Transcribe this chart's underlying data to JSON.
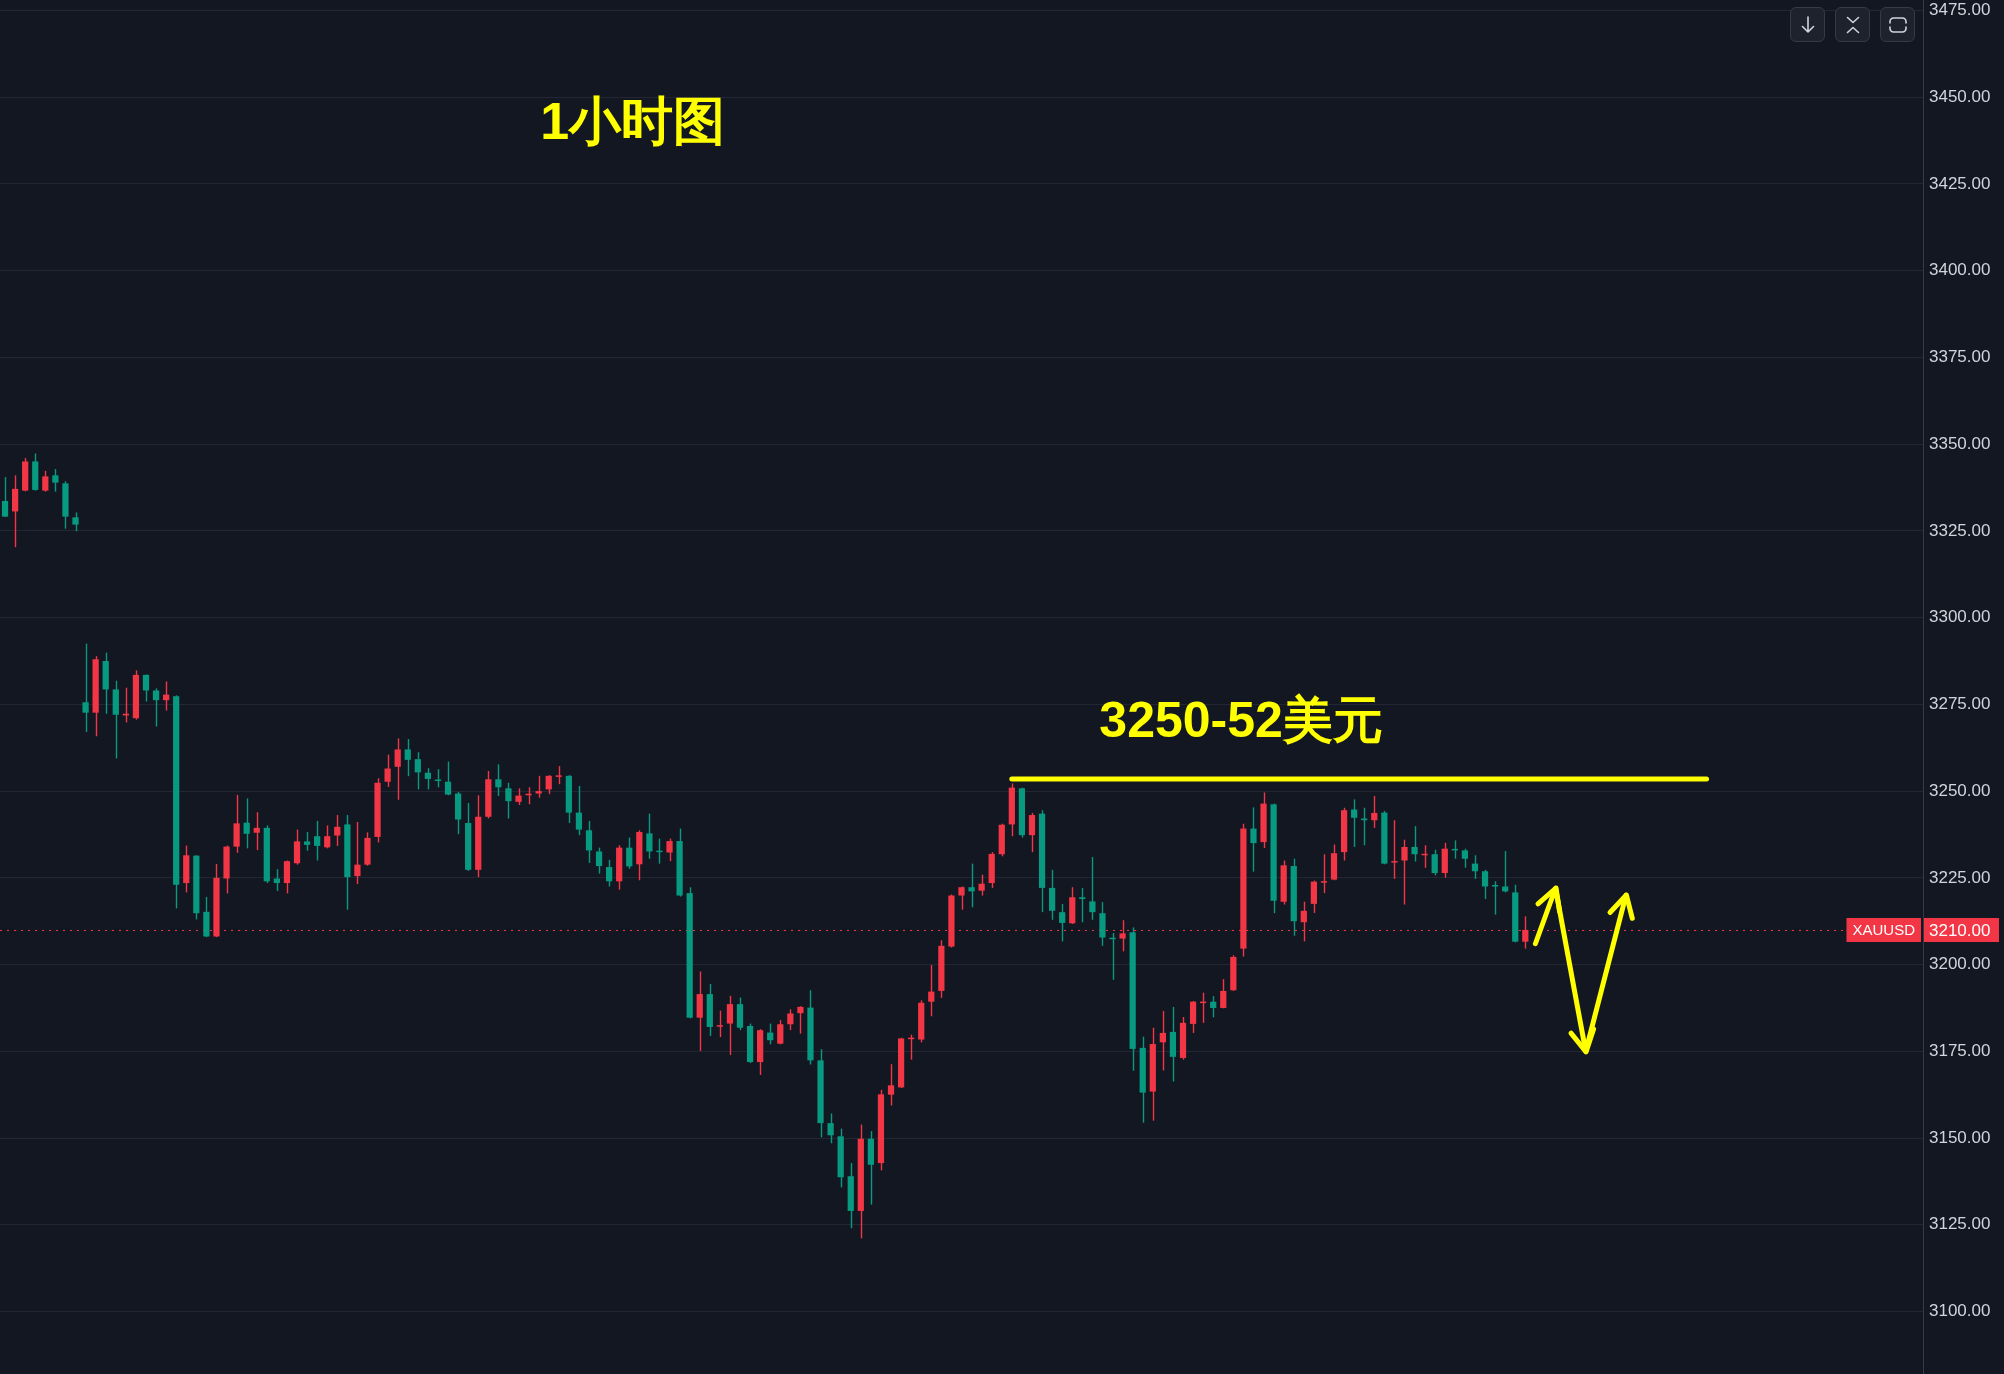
{
  "chart_data": {
    "type": "candlestick",
    "title": "1小时图",
    "categories": [
      null,
      null,
      null,
      null,
      null,
      null,
      null,
      null,
      null,
      null,
      null,
      null,
      null,
      null,
      null,
      null,
      null,
      null,
      null,
      null,
      null,
      null,
      null,
      null,
      null,
      null,
      null,
      null,
      null,
      null,
      null,
      null,
      null,
      null,
      null,
      null,
      null,
      null,
      null,
      null,
      null,
      null,
      null,
      null,
      null,
      null,
      null,
      null,
      null,
      null,
      null,
      null,
      null,
      null,
      null,
      null,
      null,
      null,
      null,
      null,
      null,
      null,
      null,
      null,
      null,
      null,
      null,
      null,
      null,
      null,
      null,
      null,
      null,
      null,
      null,
      null,
      null,
      null,
      null,
      null,
      null,
      null,
      null,
      null,
      null,
      null,
      null,
      null,
      null,
      null,
      null,
      null,
      null,
      null,
      null,
      null,
      null,
      null,
      null,
      null,
      null,
      null,
      null,
      null,
      null,
      null,
      null,
      null,
      null,
      null,
      null,
      null,
      null,
      null,
      null,
      null,
      null,
      null,
      null,
      null,
      null,
      null,
      null,
      null,
      null,
      null,
      null,
      null,
      null,
      null,
      null,
      null,
      null,
      null,
      null,
      null,
      null,
      null,
      null,
      null,
      null,
      null,
      null,
      null,
      null,
      null,
      null,
      null,
      null,
      null,
      null,
      null,
      null,
      null,
      null,
      null,
      null,
      null,
      null,
      null,
      null,
      null,
      null,
      null,
      null,
      null,
      null,
      null,
      null,
      null,
      null,
      null,
      null,
      null,
      null,
      null,
      null,
      null,
      null,
      null,
      null,
      null,
      null,
      null,
      null,
      null,
      null,
      null,
      null,
      null,
      null
    ],
    "ohlc": [
      [
        3333.6,
        3340.5,
        3329.0,
        3329.1
      ],
      [
        3330.6,
        3341.0,
        3320.3,
        3337.1
      ],
      [
        3336.6,
        3346.0,
        3336.4,
        3345.0
      ],
      [
        3345.0,
        3347.3,
        3336.6,
        3336.8
      ],
      [
        3336.6,
        3342.3,
        3336.3,
        3340.7
      ],
      [
        3341.0,
        3342.8,
        3336.3,
        3338.9
      ],
      [
        3338.7,
        3339.3,
        3325.6,
        3329.1
      ],
      [
        3328.9,
        3330.3,
        3324.9,
        3326.8
      ],
      [
        3275.6,
        3292.5,
        3267.0,
        3272.6
      ],
      [
        3272.6,
        3288.9,
        3265.8,
        3288.0
      ],
      [
        3287.5,
        3289.9,
        3272.3,
        3279.3
      ],
      [
        3279.3,
        3281.8,
        3259.4,
        3272.0
      ],
      [
        3271.8,
        3279.8,
        3269.8,
        3272.3
      ],
      [
        3271.0,
        3284.8,
        3270.6,
        3283.5
      ],
      [
        3283.5,
        3283.6,
        3275.8,
        3279.0
      ],
      [
        3279.0,
        3279.6,
        3268.6,
        3276.2
      ],
      [
        3276.2,
        3281.6,
        3273.2,
        3277.8
      ],
      [
        3277.3,
        3277.6,
        3216.2,
        3223.0
      ],
      [
        3223.5,
        3234.3,
        3220.8,
        3231.5
      ],
      [
        3231.4,
        3231.5,
        3213.0,
        3214.8
      ],
      [
        3215.2,
        3219.5,
        3207.9,
        3208.1
      ],
      [
        3208.1,
        3229.0,
        3207.9,
        3225.0
      ],
      [
        3224.8,
        3234.3,
        3220.5,
        3234.0
      ],
      [
        3234.0,
        3248.9,
        3232.2,
        3240.7
      ],
      [
        3240.9,
        3247.9,
        3233.5,
        3237.7
      ],
      [
        3238.0,
        3243.9,
        3233.0,
        3239.4
      ],
      [
        3239.4,
        3240.1,
        3223.5,
        3224.0
      ],
      [
        3224.8,
        3227.5,
        3221.2,
        3223.5
      ],
      [
        3223.5,
        3230.0,
        3220.5,
        3229.8
      ],
      [
        3229.2,
        3238.9,
        3228.8,
        3235.5
      ],
      [
        3235.5,
        3238.2,
        3232.8,
        3234.5
      ],
      [
        3237.0,
        3241.4,
        3230.0,
        3234.2
      ],
      [
        3233.8,
        3240.1,
        3233.5,
        3237.0
      ],
      [
        3237.2,
        3243.1,
        3234.2,
        3239.7
      ],
      [
        3240.4,
        3243.1,
        3215.8,
        3225.2
      ],
      [
        3225.5,
        3241.1,
        3223.2,
        3228.8
      ],
      [
        3228.8,
        3238.1,
        3228.5,
        3236.5
      ],
      [
        3236.8,
        3253.7,
        3235.2,
        3252.4
      ],
      [
        3252.7,
        3260.5,
        3251.2,
        3256.5
      ],
      [
        3257.0,
        3265.2,
        3247.5,
        3262.0
      ],
      [
        3262.0,
        3265.0,
        3254.3,
        3259.0
      ],
      [
        3259.2,
        3261.2,
        3250.5,
        3255.4
      ],
      [
        3255.3,
        3256.6,
        3250.5,
        3253.5
      ],
      [
        3253.2,
        3256.3,
        3251.1,
        3252.9
      ],
      [
        3252.7,
        3258.5,
        3248.8,
        3249.0
      ],
      [
        3249.3,
        3249.8,
        3237.6,
        3241.8
      ],
      [
        3240.8,
        3246.6,
        3227.0,
        3227.3
      ],
      [
        3227.3,
        3248.8,
        3225.2,
        3242.6
      ],
      [
        3242.6,
        3255.8,
        3242.1,
        3253.4
      ],
      [
        3253.4,
        3257.7,
        3248.6,
        3251.1
      ],
      [
        3250.8,
        3252.4,
        3242.1,
        3247.1
      ],
      [
        3246.9,
        3250.8,
        3246.0,
        3248.7
      ],
      [
        3248.8,
        3251.1,
        3246.2,
        3249.1
      ],
      [
        3249.3,
        3254.4,
        3248.1,
        3250.0
      ],
      [
        3250.5,
        3254.6,
        3249.1,
        3254.4
      ],
      [
        3254.1,
        3257.2,
        3252.0,
        3254.3
      ],
      [
        3254.4,
        3254.6,
        3240.8,
        3243.8
      ],
      [
        3243.8,
        3251.5,
        3237.3,
        3238.9
      ],
      [
        3238.7,
        3241.4,
        3229.3,
        3232.9
      ],
      [
        3232.6,
        3233.7,
        3226.2,
        3228.4
      ],
      [
        3228.1,
        3230.2,
        3222.5,
        3224.0
      ],
      [
        3224.0,
        3234.4,
        3221.6,
        3233.7
      ],
      [
        3233.7,
        3236.6,
        3227.6,
        3228.3
      ],
      [
        3228.9,
        3238.7,
        3224.3,
        3238.2
      ],
      [
        3237.8,
        3243.5,
        3230.5,
        3232.6
      ],
      [
        3232.6,
        3236.3,
        3229.1,
        3232.4
      ],
      [
        3232.3,
        3236.3,
        3229.8,
        3235.6
      ],
      [
        3235.6,
        3239.2,
        3219.6,
        3219.9
      ],
      [
        3220.6,
        3222.3,
        3184.5,
        3184.7
      ],
      [
        3184.7,
        3198.0,
        3175.1,
        3191.5
      ],
      [
        3191.5,
        3194.4,
        3179.4,
        3182.0
      ],
      [
        3182.1,
        3186.7,
        3179.1,
        3182.5
      ],
      [
        3183.0,
        3191.0,
        3173.9,
        3188.6
      ],
      [
        3188.6,
        3190.5,
        3181.1,
        3181.8
      ],
      [
        3182.3,
        3183.0,
        3171.6,
        3171.9
      ],
      [
        3171.9,
        3181.4,
        3168.2,
        3181.1
      ],
      [
        3180.4,
        3183.0,
        3177.0,
        3178.2
      ],
      [
        3177.2,
        3184.0,
        3177.0,
        3182.8
      ],
      [
        3182.8,
        3187.1,
        3181.1,
        3185.9
      ],
      [
        3186.0,
        3188.0,
        3180.1,
        3187.8
      ],
      [
        3187.6,
        3192.6,
        3171.2,
        3172.4
      ],
      [
        3172.4,
        3175.6,
        3150.2,
        3154.3
      ],
      [
        3154.3,
        3157.1,
        3148.5,
        3150.8
      ],
      [
        3150.5,
        3152.7,
        3135.8,
        3138.7
      ],
      [
        3139.0,
        3142.8,
        3124.0,
        3129.0
      ],
      [
        3129.0,
        3153.9,
        3121.1,
        3149.8
      ],
      [
        3149.8,
        3152.0,
        3130.8,
        3142.3
      ],
      [
        3142.8,
        3163.9,
        3140.7,
        3162.6
      ],
      [
        3162.5,
        3171.3,
        3159.4,
        3165.2
      ],
      [
        3164.6,
        3178.9,
        3164.4,
        3178.7
      ],
      [
        3178.5,
        3179.8,
        3172.6,
        3178.9
      ],
      [
        3178.4,
        3189.7,
        3177.6,
        3189.0
      ],
      [
        3189.3,
        3199.9,
        3185.1,
        3192.2
      ],
      [
        3192.4,
        3207.0,
        3190.4,
        3205.4
      ],
      [
        3205.2,
        3220.2,
        3204.9,
        3219.9
      ],
      [
        3219.9,
        3222.5,
        3215.8,
        3222.3
      ],
      [
        3222.3,
        3229.1,
        3216.5,
        3221.1
      ],
      [
        3221.3,
        3225.9,
        3219.9,
        3223.3
      ],
      [
        3223.5,
        3232.4,
        3222.1,
        3231.9
      ],
      [
        3231.8,
        3240.6,
        3231.2,
        3240.3
      ],
      [
        3240.4,
        3252.2,
        3237.0,
        3251.0
      ],
      [
        3250.8,
        3251.0,
        3236.6,
        3237.3
      ],
      [
        3237.3,
        3243.7,
        3232.4,
        3243.1
      ],
      [
        3243.5,
        3244.5,
        3215.1,
        3222.1
      ],
      [
        3222.1,
        3227.3,
        3212.9,
        3215.5
      ],
      [
        3215.1,
        3217.5,
        3206.7,
        3212.0
      ],
      [
        3211.9,
        3222.3,
        3211.7,
        3219.4
      ],
      [
        3219.4,
        3222.1,
        3212.2,
        3218.9
      ],
      [
        3218.2,
        3231.0,
        3212.9,
        3215.1
      ],
      [
        3214.8,
        3218.0,
        3205.4,
        3207.8
      ],
      [
        3207.6,
        3209.1,
        3195.6,
        3207.3
      ],
      [
        3207.5,
        3212.8,
        3203.8,
        3209.0
      ],
      [
        3209.3,
        3210.7,
        3169.4,
        3175.7
      ],
      [
        3176.0,
        3179.2,
        3154.4,
        3163.1
      ],
      [
        3163.4,
        3181.8,
        3155.0,
        3177.1
      ],
      [
        3177.6,
        3186.6,
        3169.5,
        3180.3
      ],
      [
        3180.6,
        3187.8,
        3166.3,
        3173.4
      ],
      [
        3173.1,
        3184.9,
        3172.6,
        3183.2
      ],
      [
        3182.9,
        3189.5,
        3180.3,
        3189.3
      ],
      [
        3188.9,
        3191.9,
        3183.2,
        3189.3
      ],
      [
        3189.3,
        3190.9,
        3184.8,
        3187.5
      ],
      [
        3187.5,
        3195.8,
        3187.4,
        3192.4
      ],
      [
        3192.6,
        3202.7,
        3192.4,
        3202.2
      ],
      [
        3204.6,
        3240.6,
        3202.3,
        3239.2
      ],
      [
        3239.2,
        3245.3,
        3226.8,
        3235.0
      ],
      [
        3235.3,
        3249.6,
        3233.6,
        3246.4
      ],
      [
        3246.2,
        3246.4,
        3214.8,
        3218.4
      ],
      [
        3218.1,
        3230.0,
        3217.3,
        3228.6
      ],
      [
        3228.4,
        3230.5,
        3208.3,
        3212.5
      ],
      [
        3212.2,
        3218.1,
        3206.7,
        3215.5
      ],
      [
        3217.5,
        3224.2,
        3214.9,
        3223.9
      ],
      [
        3223.6,
        3231.8,
        3220.6,
        3224.0
      ],
      [
        3224.5,
        3234.6,
        3224.3,
        3232.1
      ],
      [
        3232.4,
        3245.2,
        3230.0,
        3244.5
      ],
      [
        3244.7,
        3247.6,
        3233.9,
        3242.3
      ],
      [
        3242.1,
        3245.2,
        3234.4,
        3241.6
      ],
      [
        3241.6,
        3248.6,
        3239.4,
        3243.7
      ],
      [
        3243.8,
        3244.3,
        3228.9,
        3229.1
      ],
      [
        3229.4,
        3241.6,
        3224.7,
        3229.8
      ],
      [
        3230.0,
        3236.0,
        3217.3,
        3233.9
      ],
      [
        3233.9,
        3239.9,
        3229.7,
        3231.8
      ],
      [
        3231.5,
        3234.4,
        3227.9,
        3231.8
      ],
      [
        3231.8,
        3233.1,
        3225.7,
        3226.4
      ],
      [
        3226.4,
        3235.1,
        3225.0,
        3233.4
      ],
      [
        3233.2,
        3235.8,
        3230.5,
        3232.9
      ],
      [
        3232.9,
        3233.4,
        3227.9,
        3230.5
      ],
      [
        3229.1,
        3231.5,
        3224.7,
        3226.9
      ],
      [
        3226.9,
        3227.3,
        3218.9,
        3222.5
      ],
      [
        3222.8,
        3224.0,
        3214.4,
        3222.5
      ],
      [
        3222.5,
        3232.7,
        3220.8,
        3221.1
      ],
      [
        3220.8,
        3223.0,
        3206.4,
        3206.6
      ],
      [
        3206.6,
        3213.9,
        3204.6,
        3210.0
      ],
      null,
      null,
      null,
      null,
      null,
      null,
      null,
      null,
      null,
      null,
      null,
      null,
      null,
      null,
      null,
      null,
      null,
      null,
      null,
      null,
      null,
      null,
      null,
      null,
      null,
      null,
      null,
      null,
      null,
      null,
      null,
      null,
      null,
      null,
      null,
      null,
      null,
      null,
      null
    ],
    "colors": [
      "#089981",
      "#f23645",
      "#f23645",
      "#089981",
      "#f23645",
      "#089981",
      "#089981",
      "#089981",
      "#089981",
      "#f23645",
      "#089981",
      "#089981",
      "#f23645",
      "#f23645",
      "#089981",
      "#089981",
      "#f23645",
      "#089981",
      "#f23645",
      "#089981",
      "#089981",
      "#f23645",
      "#f23645",
      "#f23645",
      "#089981",
      "#f23645",
      "#089981",
      "#089981",
      "#f23645",
      "#f23645",
      "#089981",
      "#089981",
      "#f23645",
      "#f23645",
      "#089981",
      "#f23645",
      "#f23645",
      "#f23645",
      "#f23645",
      "#f23645",
      "#089981",
      "#089981",
      "#089981",
      "#089981",
      "#089981",
      "#089981",
      "#089981",
      "#f23645",
      "#f23645",
      "#089981",
      "#089981",
      "#f23645",
      "#f23645",
      "#f23645",
      "#f23645",
      "#f23645",
      "#089981",
      "#089981",
      "#089981",
      "#089981",
      "#089981",
      "#f23645",
      "#089981",
      "#f23645",
      "#089981",
      "#089981",
      "#f23645",
      "#089981",
      "#089981",
      "#f23645",
      "#089981",
      "#f23645",
      "#f23645",
      "#089981",
      "#089981",
      "#f23645",
      "#089981",
      "#f23645",
      "#f23645",
      "#f23645",
      "#089981",
      "#089981",
      "#089981",
      "#089981",
      "#089981",
      "#f23645",
      "#089981",
      "#f23645",
      "#f23645",
      "#f23645",
      "#f23645",
      "#f23645",
      "#f23645",
      "#f23645",
      "#f23645",
      "#f23645",
      "#089981",
      "#f23645",
      "#f23645",
      "#f23645",
      "#f23645",
      "#089981",
      "#f23645",
      "#089981",
      "#089981",
      "#089981",
      "#f23645",
      "#089981",
      "#089981",
      "#089981",
      "#089981",
      "#f23645",
      "#089981",
      "#089981",
      "#f23645",
      "#f23645",
      "#089981",
      "#f23645",
      "#f23645",
      "#f23645",
      "#089981",
      "#f23645",
      "#f23645",
      "#f23645",
      "#089981",
      "#f23645",
      "#089981",
      "#f23645",
      "#089981",
      "#f23645",
      "#f23645",
      "#f23645",
      "#f23645",
      "#f23645",
      "#089981",
      "#089981",
      "#f23645",
      "#089981",
      "#f23645",
      "#f23645",
      "#089981",
      "#f23645",
      "#089981",
      "#f23645",
      "#089981",
      "#089981",
      "#089981",
      "#089981",
      "#089981",
      "#089981",
      "#089981",
      "#f23645",
      null,
      null,
      null,
      null,
      null,
      null,
      null,
      null,
      null,
      null,
      null,
      null,
      null,
      null,
      null,
      null,
      null,
      null,
      null,
      null,
      null,
      null,
      null,
      null,
      null,
      null,
      null,
      null,
      null,
      null,
      null,
      null,
      null,
      null,
      null,
      null,
      null,
      null,
      null
    ],
    "series": [
      {
        "type": "line",
        "name": "3250-52美元",
        "color": "#ffff00",
        "values": [
          null,
          null,
          null,
          null,
          null,
          null,
          null,
          null,
          null,
          null,
          null,
          null,
          null,
          null,
          null,
          null,
          null,
          null,
          null,
          null,
          null,
          null,
          null,
          null,
          null,
          null,
          null,
          null,
          null,
          null,
          null,
          null,
          null,
          null,
          null,
          null,
          null,
          null,
          null,
          null,
          null,
          null,
          null,
          null,
          null,
          null,
          null,
          null,
          null,
          null,
          null,
          null,
          null,
          null,
          null,
          null,
          null,
          null,
          null,
          null,
          null,
          null,
          null,
          null,
          null,
          null,
          null,
          null,
          null,
          null,
          null,
          null,
          null,
          null,
          null,
          null,
          null,
          null,
          null,
          null,
          null,
          null,
          null,
          null,
          null,
          null,
          null,
          null,
          null,
          null,
          null,
          null,
          null,
          null,
          null,
          null,
          null,
          null,
          null,
          null,
          3253.5,
          null,
          null,
          null,
          null,
          null,
          null,
          null,
          null,
          null,
          null,
          null,
          null,
          null,
          null,
          null,
          null,
          null,
          null,
          null,
          null,
          null,
          null,
          null,
          null,
          null,
          null,
          null,
          null,
          null,
          null,
          null,
          null,
          null,
          null,
          null,
          null,
          null,
          null,
          null,
          null,
          null,
          null,
          null,
          null,
          null,
          null,
          null,
          null,
          null,
          null,
          null,
          null,
          null,
          null,
          null,
          null,
          null,
          null,
          null,
          null,
          null,
          null,
          null,
          null,
          null,
          null,
          null,
          null,
          3253.5,
          null,
          null,
          null,
          null,
          null,
          null,
          null,
          null,
          null,
          null,
          null,
          null,
          null,
          null,
          null,
          null,
          null,
          null,
          null,
          null,
          null
        ]
      },
      {
        "type": "line",
        "color": "#ffff00",
        "values": [
          null,
          null,
          null,
          null,
          null,
          null,
          null,
          null,
          null,
          null,
          null,
          null,
          null,
          null,
          null,
          null,
          null,
          null,
          null,
          null,
          null,
          null,
          null,
          null,
          null,
          null,
          null,
          null,
          null,
          null,
          null,
          null,
          null,
          null,
          null,
          null,
          null,
          null,
          null,
          null,
          null,
          null,
          null,
          null,
          null,
          null,
          null,
          null,
          null,
          null,
          null,
          null,
          null,
          null,
          null,
          null,
          null,
          null,
          null,
          null,
          null,
          null,
          null,
          null,
          null,
          null,
          null,
          null,
          null,
          null,
          null,
          null,
          null,
          null,
          null,
          null,
          null,
          null,
          null,
          null,
          null,
          null,
          null,
          null,
          null,
          null,
          null,
          null,
          null,
          null,
          null,
          null,
          null,
          null,
          null,
          null,
          null,
          null,
          null,
          null,
          null,
          null,
          null,
          null,
          null,
          null,
          null,
          null,
          null,
          null,
          null,
          null,
          null,
          null,
          null,
          null,
          null,
          null,
          null,
          null,
          null,
          null,
          null,
          null,
          null,
          null,
          null,
          null,
          null,
          null,
          null,
          null,
          null,
          null,
          null,
          null,
          null,
          null,
          null,
          null,
          null,
          null,
          null,
          null,
          null,
          null,
          null,
          null,
          null,
          null,
          null,
          null,
          3206,
          null,
          3222,
          null,
          null,
          3175,
          null,
          null,
          null,
          3220,
          null,
          null,
          null,
          null,
          null,
          null,
          null,
          null,
          null,
          null,
          null,
          null,
          null,
          null,
          null,
          null,
          null,
          null,
          null,
          null,
          null,
          null,
          null,
          null,
          null,
          null,
          null,
          null,
          null
        ]
      }
    ],
    "ylim": [
      3082,
      3478
    ],
    "yticks": [
      {
        "value": 3100,
        "label": "3100.00"
      },
      {
        "value": 3125,
        "label": "3125.00"
      },
      {
        "value": 3150,
        "label": "3150.00"
      },
      {
        "value": 3175,
        "label": "3175.00"
      },
      {
        "value": 3200,
        "label": "3200.00"
      },
      {
        "value": 3225,
        "label": "3225.00"
      },
      {
        "value": 3250,
        "label": "3250.00"
      },
      {
        "value": 3275,
        "label": "3275.00"
      },
      {
        "value": 3300,
        "label": "3300.00"
      },
      {
        "value": 3325,
        "label": "3325.00"
      },
      {
        "value": 3350,
        "label": "3350.00"
      },
      {
        "value": 3375,
        "label": "3375.00"
      },
      {
        "value": 3400,
        "label": "3400.00"
      },
      {
        "value": 3425,
        "label": "3425.00"
      },
      {
        "value": 3450,
        "label": "3450.00"
      },
      {
        "value": 3475,
        "label": "3475.00"
      }
    ],
    "ref_lines": [
      {
        "axis": "y",
        "value": 3210,
        "label": "XAUUSD",
        "color": "#f23645",
        "line_style": "dotted"
      }
    ],
    "annotations": [
      "3210.00"
    ],
    "grid": "y",
    "legend": false,
    "tick_labels": "y"
  }
}
